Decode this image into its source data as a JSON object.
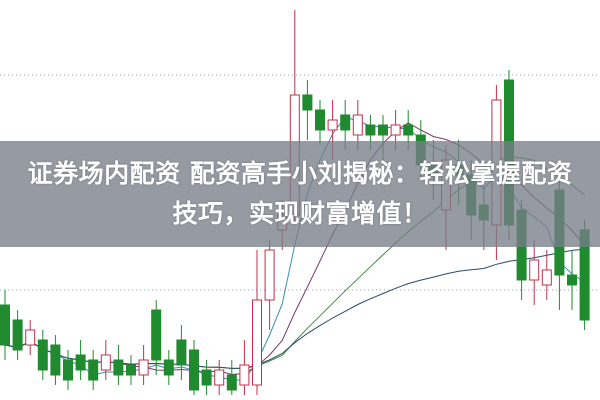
{
  "banner": {
    "line1": "证券场内配资 配资高手小刘揭秘：轻松掌握配资",
    "line2": "技巧，实现财富增值！"
  },
  "colors": {
    "up": "#c0304a",
    "down": "#1f8a2e",
    "ma_blue": "#3a8fb0",
    "ma_purple": "#7a3a6a",
    "ma_green": "#3c8c3c",
    "ma_navy": "#2a4a6a",
    "grid": "#9aa0b0"
  },
  "chart_data": {
    "type": "candlestick",
    "grid": true,
    "candles": [
      {
        "o": 95,
        "c": 55,
        "h": 110,
        "l": 40
      },
      {
        "o": 80,
        "c": 50,
        "h": 90,
        "l": 40
      },
      {
        "o": 55,
        "c": 70,
        "h": 80,
        "l": 45
      },
      {
        "o": 60,
        "c": 30,
        "h": 70,
        "l": 20
      },
      {
        "o": 55,
        "c": 25,
        "h": 65,
        "l": 15
      },
      {
        "o": 40,
        "c": 20,
        "h": 50,
        "l": 10
      },
      {
        "o": 45,
        "c": 30,
        "h": 60,
        "l": 20
      },
      {
        "o": 40,
        "c": 20,
        "h": 50,
        "l": 10
      },
      {
        "o": 30,
        "c": 45,
        "h": 60,
        "l": 20
      },
      {
        "o": 40,
        "c": 25,
        "h": 55,
        "l": 15
      },
      {
        "o": 35,
        "c": 25,
        "h": 45,
        "l": 15
      },
      {
        "o": 25,
        "c": 40,
        "h": 55,
        "l": 15
      },
      {
        "o": 90,
        "c": 40,
        "h": 100,
        "l": 25
      },
      {
        "o": 40,
        "c": 25,
        "h": 50,
        "l": 15
      },
      {
        "o": 60,
        "c": 35,
        "h": 75,
        "l": 20
      },
      {
        "o": 50,
        "c": 10,
        "h": 60,
        "l": 5
      },
      {
        "o": 30,
        "c": 15,
        "h": 40,
        "l": 5
      },
      {
        "o": 15,
        "c": 30,
        "h": 40,
        "l": 5
      },
      {
        "o": 25,
        "c": 10,
        "h": 40,
        "l": 5
      },
      {
        "o": 15,
        "c": 35,
        "h": 60,
        "l": 5
      },
      {
        "o": 15,
        "c": 100,
        "h": 150,
        "l": 5
      },
      {
        "o": 100,
        "c": 150,
        "h": 160,
        "l": 70
      },
      {
        "o": 170,
        "c": 185,
        "h": 200,
        "l": 150
      },
      {
        "o": 185,
        "c": 305,
        "h": 390,
        "l": 180
      },
      {
        "o": 305,
        "c": 290,
        "h": 320,
        "l": 260
      },
      {
        "o": 290,
        "c": 270,
        "h": 300,
        "l": 255
      },
      {
        "o": 270,
        "c": 280,
        "h": 300,
        "l": 240
      },
      {
        "o": 285,
        "c": 270,
        "h": 300,
        "l": 250
      },
      {
        "o": 265,
        "c": 285,
        "h": 300,
        "l": 250
      },
      {
        "o": 275,
        "c": 265,
        "h": 285,
        "l": 250
      },
      {
        "o": 275,
        "c": 265,
        "h": 285,
        "l": 240
      },
      {
        "o": 265,
        "c": 275,
        "h": 290,
        "l": 250
      },
      {
        "o": 275,
        "c": 265,
        "h": 290,
        "l": 250
      },
      {
        "o": 265,
        "c": 235,
        "h": 280,
        "l": 220
      },
      {
        "o": 235,
        "c": 225,
        "h": 260,
        "l": 200
      },
      {
        "o": 190,
        "c": 240,
        "h": 255,
        "l": 150
      },
      {
        "o": 235,
        "c": 225,
        "h": 260,
        "l": 195
      },
      {
        "o": 225,
        "c": 185,
        "h": 240,
        "l": 160
      },
      {
        "o": 195,
        "c": 180,
        "h": 215,
        "l": 150
      },
      {
        "o": 175,
        "c": 300,
        "h": 315,
        "l": 140
      },
      {
        "o": 320,
        "c": 175,
        "h": 330,
        "l": 160
      },
      {
        "o": 190,
        "c": 120,
        "h": 200,
        "l": 100
      },
      {
        "o": 120,
        "c": 140,
        "h": 160,
        "l": 95
      },
      {
        "o": 115,
        "c": 130,
        "h": 150,
        "l": 100
      },
      {
        "o": 210,
        "c": 125,
        "h": 225,
        "l": 90
      },
      {
        "o": 125,
        "c": 115,
        "h": 150,
        "l": 90
      },
      {
        "o": 170,
        "c": 80,
        "h": 180,
        "l": 70
      }
    ]
  }
}
